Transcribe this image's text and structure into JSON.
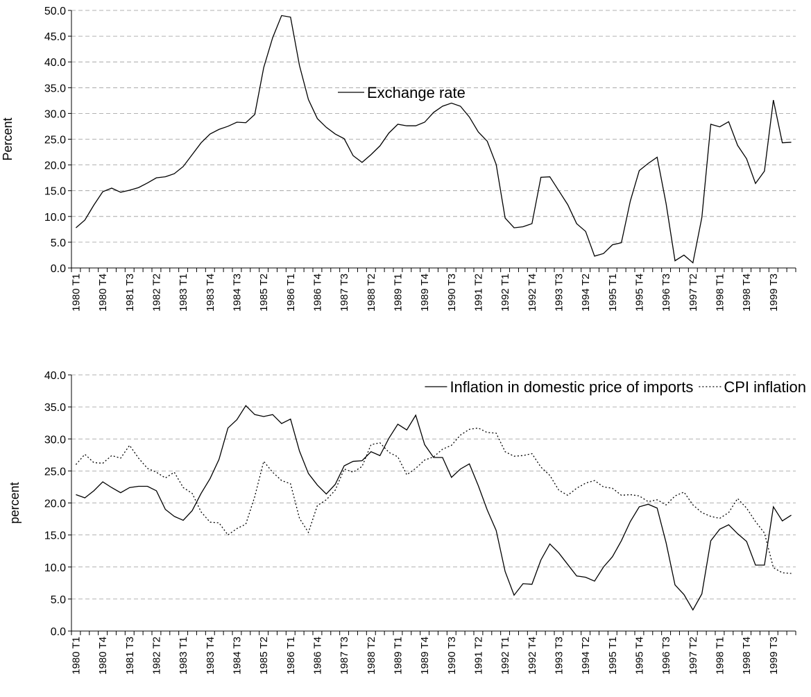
{
  "chart_data": [
    {
      "type": "line",
      "ylabel": "Percent",
      "legend": "upper center",
      "grid": true,
      "ylim": [
        0,
        50
      ],
      "yticks": [
        {
          "value": 0,
          "label": "0.0"
        },
        {
          "value": 5,
          "label": "5.0"
        },
        {
          "value": 10,
          "label": "10.0"
        },
        {
          "value": 15,
          "label": "15.0"
        },
        {
          "value": 20,
          "label": "20.0"
        },
        {
          "value": 25,
          "label": "25.0"
        },
        {
          "value": 30,
          "label": "30.0"
        },
        {
          "value": 35,
          "label": "35.0"
        },
        {
          "value": 40,
          "label": "40.0"
        },
        {
          "value": 45,
          "label": "45.0"
        },
        {
          "value": 50,
          "label": "50.0"
        }
      ],
      "categories": [
        "1980 T1",
        null,
        null,
        "1980 T4",
        null,
        null,
        "1981 T3",
        null,
        null,
        "1982 T2",
        null,
        null,
        "1983 T1",
        null,
        null,
        "1983 T4",
        null,
        null,
        "1984 T3",
        null,
        null,
        "1985 T2",
        null,
        null,
        "1986 T1",
        null,
        null,
        "1986 T4",
        null,
        null,
        "1987 T3",
        null,
        null,
        "1988 T2",
        null,
        null,
        "1989 T1",
        null,
        null,
        "1989 T4",
        null,
        null,
        "1990 T3",
        null,
        null,
        "1991 T2",
        null,
        null,
        "1992 T1",
        null,
        null,
        "1992 T4",
        null,
        null,
        "1993 T3",
        null,
        null,
        "1994 T2",
        null,
        null,
        "1995 T1",
        null,
        null,
        "1995 T4",
        null,
        null,
        "1996 T3",
        null,
        null,
        "1997 T2",
        null,
        null,
        "1998 T1",
        null,
        null,
        "1998 T4",
        null,
        null,
        "1999 T3",
        null,
        null
      ],
      "series": [
        {
          "name": "Exchange rate",
          "color": "#000000",
          "style": "solid",
          "values": [
            7.8,
            9.3,
            12.2,
            14.8,
            15.5,
            14.7,
            15.1,
            15.6,
            16.5,
            17.5,
            17.7,
            18.3,
            19.7,
            22.0,
            24.3,
            26.0,
            26.9,
            27.5,
            28.3,
            28.2,
            29.8,
            38.9,
            44.7,
            49.0,
            48.7,
            39.3,
            32.7,
            29.0,
            27.3,
            26.0,
            25.1,
            21.8,
            20.5,
            22.0,
            23.7,
            26.2,
            27.9,
            27.6,
            27.6,
            28.3,
            30.2,
            31.4,
            32.0,
            31.4,
            29.3,
            26.4,
            24.6,
            20.1,
            9.7,
            7.8,
            8.0,
            8.6,
            17.6,
            17.7,
            15.0,
            12.3,
            8.6,
            7.1,
            2.3,
            2.8,
            4.5,
            4.9,
            13.0,
            18.9,
            20.3,
            21.5,
            12.5,
            1.4,
            2.5,
            1.0,
            9.8,
            27.9,
            27.4,
            28.4,
            23.8,
            21.2,
            16.4,
            18.8,
            32.6,
            24.3,
            24.4
          ]
        }
      ]
    },
    {
      "type": "line",
      "ylabel": "percent",
      "legend": "upper right",
      "grid": true,
      "ylim": [
        0,
        40
      ],
      "yticks": [
        {
          "value": 0,
          "label": "0.0"
        },
        {
          "value": 5,
          "label": "5.0"
        },
        {
          "value": 10,
          "label": "10.0"
        },
        {
          "value": 15,
          "label": "15.0"
        },
        {
          "value": 20,
          "label": "20.0"
        },
        {
          "value": 25,
          "label": "25.0"
        },
        {
          "value": 30,
          "label": "30.0"
        },
        {
          "value": 35,
          "label": "35.0"
        },
        {
          "value": 40,
          "label": "40.0"
        }
      ],
      "categories": [
        "1980 T1",
        null,
        null,
        "1980 T4",
        null,
        null,
        "1981 T3",
        null,
        null,
        "1982 T2",
        null,
        null,
        "1983 T1",
        null,
        null,
        "1983 T4",
        null,
        null,
        "1984 T3",
        null,
        null,
        "1985 T2",
        null,
        null,
        "1986 T1",
        null,
        null,
        "1986 T4",
        null,
        null,
        "1987 T3",
        null,
        null,
        "1988 T2",
        null,
        null,
        "1989 T1",
        null,
        null,
        "1989 T4",
        null,
        null,
        "1990 T3",
        null,
        null,
        "1991 T2",
        null,
        null,
        "1992 T1",
        null,
        null,
        "1992 T4",
        null,
        null,
        "1993 T3",
        null,
        null,
        "1994 T2",
        null,
        null,
        "1995 T1",
        null,
        null,
        "1995 T4",
        null,
        null,
        "1996 T3",
        null,
        null,
        "1997 T2",
        null,
        null,
        "1998 T1",
        null,
        null,
        "1998 T4",
        null,
        null,
        "1999 T3",
        null,
        null
      ],
      "series": [
        {
          "name": "Inflation in domestic price of imports",
          "color": "#000000",
          "style": "solid",
          "values": [
            21.3,
            20.8,
            21.9,
            23.3,
            22.4,
            21.6,
            22.4,
            22.6,
            22.6,
            21.9,
            19.0,
            17.9,
            17.3,
            18.8,
            21.5,
            23.8,
            26.8,
            31.7,
            33.0,
            35.2,
            33.8,
            33.5,
            33.8,
            32.4,
            33.1,
            28.1,
            24.6,
            22.8,
            21.4,
            22.9,
            25.8,
            26.5,
            26.6,
            28.0,
            27.4,
            30.1,
            32.3,
            31.4,
            33.7,
            29.1,
            27.1,
            27.1,
            24.0,
            25.3,
            26.1,
            22.7,
            18.9,
            15.7,
            9.3,
            5.6,
            7.4,
            7.3,
            11.1,
            13.6,
            12.2,
            10.4,
            8.6,
            8.4,
            7.8,
            10.0,
            11.6,
            14.1,
            17.1,
            19.4,
            19.8,
            19.2,
            13.8,
            7.2,
            5.7,
            3.3,
            5.8,
            14.1,
            15.9,
            16.6,
            15.2,
            14.0,
            10.3,
            10.3,
            19.4,
            17.2,
            18.1
          ]
        },
        {
          "name": "CPI inflation",
          "color": "#000000",
          "style": "dotted",
          "values": [
            26.0,
            27.6,
            26.3,
            26.2,
            27.4,
            27.0,
            29.0,
            27.0,
            25.4,
            24.8,
            23.9,
            24.8,
            22.4,
            21.5,
            18.6,
            17.0,
            16.9,
            15.0,
            16.0,
            16.7,
            21.0,
            26.5,
            24.8,
            23.5,
            23.0,
            17.6,
            15.4,
            19.6,
            20.5,
            22.0,
            25.3,
            24.8,
            25.7,
            29.1,
            29.4,
            27.9,
            27.2,
            24.4,
            25.4,
            26.7,
            27.2,
            28.4,
            29.0,
            30.6,
            31.5,
            31.7,
            31.0,
            30.9,
            28.0,
            27.3,
            27.4,
            27.7,
            25.6,
            24.3,
            22.0,
            21.2,
            22.3,
            23.1,
            23.5,
            22.5,
            22.3,
            21.2,
            21.3,
            21.1,
            20.2,
            20.5,
            19.7,
            21.1,
            21.7,
            19.7,
            18.5,
            17.9,
            17.6,
            18.5,
            20.7,
            19.2,
            17.1,
            15.3,
            9.9,
            9.1,
            9.0
          ]
        }
      ]
    }
  ]
}
